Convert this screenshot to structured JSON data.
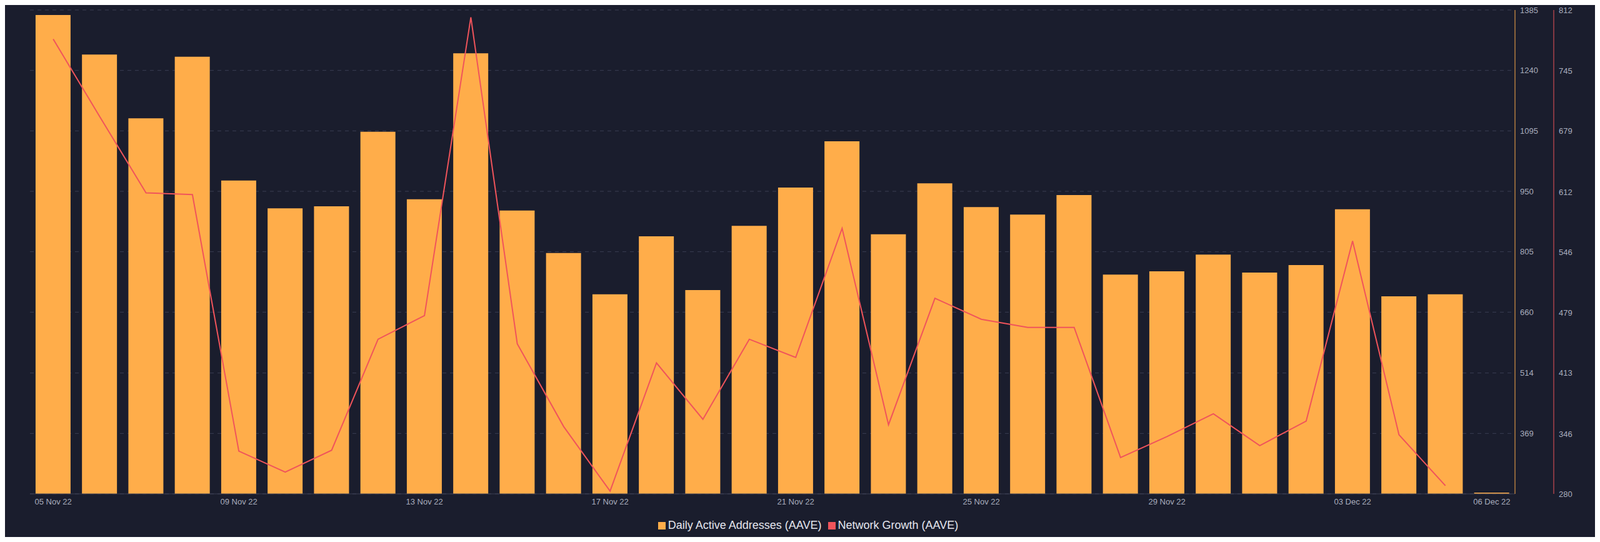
{
  "chart_data": {
    "type": "bar",
    "categories": [
      "05 Nov 22",
      null,
      null,
      null,
      "09 Nov 22",
      null,
      null,
      null,
      "13 Nov 22",
      null,
      null,
      null,
      "17 Nov 22",
      null,
      null,
      null,
      "21 Nov 22",
      null,
      null,
      null,
      "25 Nov 22",
      null,
      null,
      null,
      "29 Nov 22",
      null,
      null,
      null,
      "03 Dec 22",
      null,
      null,
      "06 Dec 22"
    ],
    "series": [
      {
        "name": "Daily Active Addresses (AAVE)",
        "type": "bar",
        "color": "#ffad4a",
        "values": [
          1373,
          1278,
          1125,
          1273,
          976,
          909,
          914,
          1093,
          931,
          1281,
          904,
          802,
          703,
          842,
          713,
          867,
          959,
          1070,
          847,
          969,
          912,
          894,
          941,
          750,
          758,
          798,
          755,
          773,
          907,
          698,
          703,
          227
        ]
      },
      {
        "name": "Network Growth (AAVE)",
        "type": "line",
        "color": "#f0545b",
        "axis": "y2",
        "values": [
          780,
          695,
          611,
          609,
          327,
          304,
          328,
          450,
          476,
          804,
          445,
          354,
          283,
          424,
          362,
          450,
          430,
          572,
          356,
          495,
          472,
          463,
          463,
          320,
          343,
          368,
          333,
          360,
          558,
          345,
          289,
          null
        ]
      }
    ],
    "ylim": [
      224,
      1385
    ],
    "yticks": [
      369,
      514,
      660,
      805,
      950,
      1095,
      1240,
      1385
    ],
    "y2lim": [
      280,
      812
    ],
    "y2ticks": [
      280,
      346,
      413,
      479,
      546,
      612,
      679,
      745,
      812
    ],
    "grid": true,
    "legend": "bottom"
  }
}
